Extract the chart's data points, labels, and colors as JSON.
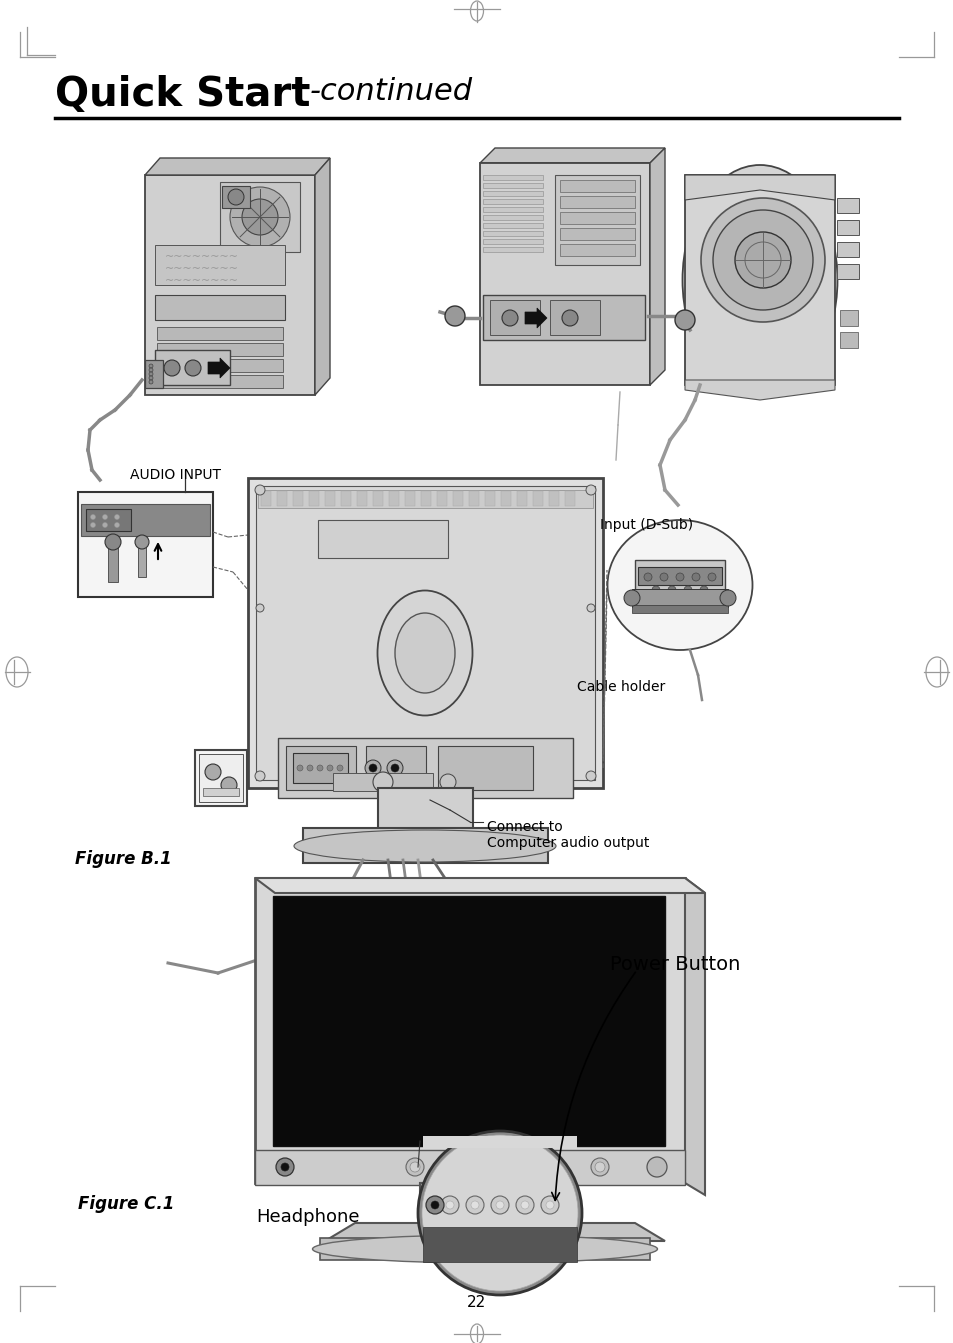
{
  "page_bg": "#ffffff",
  "title_bold": "Quick Start",
  "title_italic": "-continued",
  "separator_color": "#000000",
  "separator_lw": 2.5,
  "label_audio_input": "AUDIO INPUT",
  "label_input_dsub": "Input (D-Sub)",
  "label_cable_holder": "Cable holder",
  "label_connect_to_1": "Connect to",
  "label_connect_to_2": "Computer audio output",
  "label_power_button": "Power Button",
  "label_headphone": "Headphone",
  "figure_b1_label": "Figure B.1",
  "figure_c1_label": "Figure C.1",
  "page_number": "22",
  "gray_light": "#d8d8d8",
  "gray_mid": "#aaaaaa",
  "gray_dark": "#777777",
  "gray_darker": "#444444",
  "black": "#000000",
  "white": "#ffffff"
}
